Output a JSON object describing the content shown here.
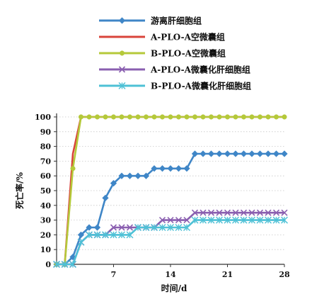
{
  "chart_data": {
    "type": "line",
    "xlabel": "时间/d",
    "ylabel": "死亡率/%",
    "xlim": [
      0,
      28
    ],
    "ylim": [
      0,
      100
    ],
    "xticks": [
      7,
      14,
      21,
      28
    ],
    "yticks": [
      0,
      10,
      20,
      30,
      40,
      50,
      60,
      70,
      80,
      90,
      100
    ],
    "grid": true,
    "legend_position": "top",
    "series": [
      {
        "name": "游离肝细胞组",
        "color": "#3f86c7",
        "marker": "diamond",
        "x": [
          0,
          1,
          2,
          3,
          4,
          5,
          6,
          7,
          8,
          9,
          10,
          11,
          12,
          13,
          14,
          15,
          16,
          17,
          18,
          19,
          20,
          21,
          22,
          23,
          24,
          25,
          26,
          27,
          28
        ],
        "y": [
          0,
          0,
          5,
          20,
          25,
          25,
          45,
          55,
          60,
          60,
          60,
          60,
          65,
          65,
          65,
          65,
          65,
          75,
          75,
          75,
          75,
          75,
          75,
          75,
          75,
          75,
          75,
          75,
          75
        ]
      },
      {
        "name": "A-PLO-A空微囊组",
        "color": "#d9443b",
        "marker": "none",
        "x": [
          0,
          1,
          2,
          3,
          4,
          5,
          6,
          7,
          8,
          9,
          10,
          11,
          12,
          13,
          14,
          15,
          16,
          17,
          18,
          19,
          20,
          21,
          22,
          23,
          24,
          25,
          26,
          27,
          28
        ],
        "y": [
          0,
          0,
          75,
          100,
          100,
          100,
          100,
          100,
          100,
          100,
          100,
          100,
          100,
          100,
          100,
          100,
          100,
          100,
          100,
          100,
          100,
          100,
          100,
          100,
          100,
          100,
          100,
          100,
          100
        ]
      },
      {
        "name": "B-PLO-A空微囊组",
        "color": "#b5c93a",
        "marker": "circle",
        "x": [
          0,
          1,
          2,
          3,
          4,
          5,
          6,
          7,
          8,
          9,
          10,
          11,
          12,
          13,
          14,
          15,
          16,
          17,
          18,
          19,
          20,
          21,
          22,
          23,
          24,
          25,
          26,
          27,
          28
        ],
        "y": [
          0,
          0,
          65,
          100,
          100,
          100,
          100,
          100,
          100,
          100,
          100,
          100,
          100,
          100,
          100,
          100,
          100,
          100,
          100,
          100,
          100,
          100,
          100,
          100,
          100,
          100,
          100,
          100,
          100
        ]
      },
      {
        "name": "A-PLO-A微囊化肝细胞组",
        "color": "#8a5fb0",
        "marker": "x",
        "x": [
          0,
          1,
          2,
          3,
          4,
          5,
          6,
          7,
          8,
          9,
          10,
          11,
          12,
          13,
          14,
          15,
          16,
          17,
          18,
          19,
          20,
          21,
          22,
          23,
          24,
          25,
          26,
          27,
          28
        ],
        "y": [
          0,
          0,
          0,
          15,
          20,
          20,
          20,
          25,
          25,
          25,
          25,
          25,
          25,
          30,
          30,
          30,
          30,
          35,
          35,
          35,
          35,
          35,
          35,
          35,
          35,
          35,
          35,
          35,
          35
        ]
      },
      {
        "name": "B-PLO-A微囊化肝细胞组",
        "color": "#4ec1d6",
        "marker": "star",
        "x": [
          0,
          1,
          2,
          3,
          4,
          5,
          6,
          7,
          8,
          9,
          10,
          11,
          12,
          13,
          14,
          15,
          16,
          17,
          18,
          19,
          20,
          21,
          22,
          23,
          24,
          25,
          26,
          27,
          28
        ],
        "y": [
          0,
          0,
          0,
          15,
          20,
          20,
          20,
          20,
          20,
          20,
          25,
          25,
          25,
          25,
          25,
          25,
          25,
          30,
          30,
          30,
          30,
          30,
          30,
          30,
          30,
          30,
          30,
          30,
          30
        ]
      }
    ]
  }
}
